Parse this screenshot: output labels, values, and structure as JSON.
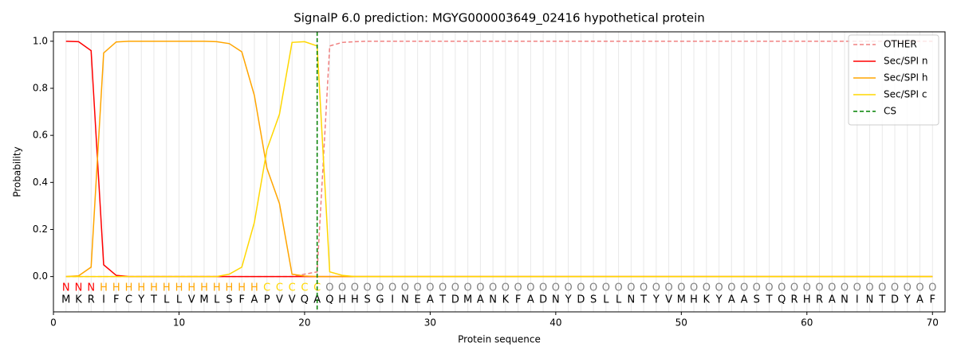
{
  "chart_data": {
    "type": "line",
    "title": "SignalP 6.0 prediction: MGYG000003649_02416 hypothetical protein",
    "xlabel": "Protein sequence",
    "ylabel": "Probability",
    "xlim": [
      0,
      71
    ],
    "ylim": [
      -0.15,
      1.04
    ],
    "xticks": [
      0,
      10,
      20,
      30,
      40,
      50,
      60,
      70
    ],
    "yticks": [
      {
        "value": 0,
        "label": "0.0"
      },
      {
        "value": 0.2,
        "label": "0.2"
      },
      {
        "value": 0.4,
        "label": "0.4"
      },
      {
        "value": 0.6,
        "label": "0.6"
      },
      {
        "value": 0.8,
        "label": "0.8"
      },
      {
        "value": 1,
        "label": "1.0"
      }
    ],
    "grid": "x",
    "legend": "upper right",
    "x": [
      1,
      2,
      3,
      4,
      5,
      6,
      7,
      8,
      9,
      10,
      11,
      12,
      13,
      14,
      15,
      16,
      17,
      18,
      19,
      20,
      21,
      22,
      23,
      24,
      25,
      26,
      27,
      28,
      29,
      30,
      31,
      32,
      33,
      34,
      35,
      36,
      37,
      38,
      39,
      40,
      41,
      42,
      43,
      44,
      45,
      46,
      47,
      48,
      49,
      50,
      51,
      52,
      53,
      54,
      55,
      56,
      57,
      58,
      59,
      60,
      61,
      62,
      63,
      64,
      65,
      66,
      67,
      68,
      69,
      70
    ],
    "sequence": [
      "M",
      "K",
      "R",
      "I",
      "F",
      "C",
      "Y",
      "T",
      "L",
      "L",
      "V",
      "M",
      "L",
      "S",
      "F",
      "A",
      "P",
      "V",
      "V",
      "Q",
      "A",
      "Q",
      "H",
      "H",
      "S",
      "G",
      "I",
      "N",
      "E",
      "A",
      "T",
      "D",
      "M",
      "A",
      "N",
      "K",
      "F",
      "A",
      "D",
      "N",
      "Y",
      "D",
      "S",
      "L",
      "L",
      "N",
      "T",
      "Y",
      "V",
      "M",
      "H",
      "K",
      "Y",
      "A",
      "A",
      "S",
      "T",
      "Q",
      "R",
      "H",
      "R",
      "A",
      "N",
      "I",
      "N",
      "T",
      "D",
      "Y",
      "A",
      "F"
    ],
    "region_labels": [
      "N",
      "N",
      "N",
      "H",
      "H",
      "H",
      "H",
      "H",
      "H",
      "H",
      "H",
      "H",
      "H",
      "H",
      "H",
      "H",
      "C",
      "C",
      "C",
      "C",
      "C",
      "O",
      "O",
      "O",
      "O",
      "O",
      "O",
      "O",
      "O",
      "O",
      "O",
      "O",
      "O",
      "O",
      "O",
      "O",
      "O",
      "O",
      "O",
      "O",
      "O",
      "O",
      "O",
      "O",
      "O",
      "O",
      "O",
      "O",
      "O",
      "O",
      "O",
      "O",
      "O",
      "O",
      "O",
      "O",
      "O",
      "O",
      "O",
      "O",
      "O",
      "O",
      "O",
      "O",
      "O",
      "O",
      "O",
      "O",
      "O",
      "O"
    ],
    "region_colors": {
      "N": "#ff0000",
      "H": "#ffa500",
      "C": "#ffd700",
      "O": "#808080"
    },
    "series": [
      {
        "name": "OTHER",
        "color": "#f08080",
        "dashed": true,
        "values": [
          0,
          0,
          0,
          0,
          0,
          0,
          0,
          0,
          0,
          0,
          0,
          0,
          0,
          0,
          0,
          0,
          0,
          0,
          0,
          0.01,
          0.02,
          0.98,
          0.995,
          0.998,
          1,
          1,
          1,
          1,
          1,
          1,
          1,
          1,
          1,
          1,
          1,
          1,
          1,
          1,
          1,
          1,
          1,
          1,
          1,
          1,
          1,
          1,
          1,
          1,
          1,
          1,
          1,
          1,
          1,
          1,
          1,
          1,
          1,
          1,
          1,
          1,
          1,
          1,
          1,
          1,
          1,
          1,
          1,
          1,
          1,
          1
        ]
      },
      {
        "name": "Sec/SPI n",
        "color": "#ff0000",
        "dashed": false,
        "values": [
          1.0,
          0.998,
          0.96,
          0.05,
          0.005,
          0,
          0,
          0,
          0,
          0,
          0,
          0,
          0,
          0,
          0,
          0,
          0,
          0,
          0,
          0,
          0,
          0,
          0,
          0,
          0,
          0,
          0,
          0,
          0,
          0,
          0,
          0,
          0,
          0,
          0,
          0,
          0,
          0,
          0,
          0,
          0,
          0,
          0,
          0,
          0,
          0,
          0,
          0,
          0,
          0,
          0,
          0,
          0,
          0,
          0,
          0,
          0,
          0,
          0,
          0,
          0,
          0,
          0,
          0,
          0,
          0,
          0,
          0,
          0,
          0
        ]
      },
      {
        "name": "Sec/SPI h",
        "color": "#ffa500",
        "dashed": false,
        "values": [
          0,
          0.003,
          0.04,
          0.95,
          0.997,
          1,
          1,
          1,
          1,
          1,
          1,
          1,
          0.998,
          0.99,
          0.955,
          0.77,
          0.46,
          0.31,
          0.01,
          0.002,
          0,
          0,
          0,
          0,
          0,
          0,
          0,
          0,
          0,
          0,
          0,
          0,
          0,
          0,
          0,
          0,
          0,
          0,
          0,
          0,
          0,
          0,
          0,
          0,
          0,
          0,
          0,
          0,
          0,
          0,
          0,
          0,
          0,
          0,
          0,
          0,
          0,
          0,
          0,
          0,
          0,
          0,
          0,
          0,
          0,
          0,
          0,
          0,
          0,
          0
        ]
      },
      {
        "name": "Sec/SPI c",
        "color": "#ffd700",
        "dashed": false,
        "values": [
          0,
          0,
          0,
          0,
          0,
          0,
          0,
          0,
          0,
          0,
          0,
          0,
          0,
          0.01,
          0.04,
          0.23,
          0.54,
          0.69,
          0.995,
          0.998,
          0.98,
          0.02,
          0.005,
          0,
          0,
          0,
          0,
          0,
          0,
          0,
          0,
          0,
          0,
          0,
          0,
          0,
          0,
          0,
          0,
          0,
          0,
          0,
          0,
          0,
          0,
          0,
          0,
          0,
          0,
          0,
          0,
          0,
          0,
          0,
          0,
          0,
          0,
          0,
          0,
          0,
          0,
          0,
          0,
          0,
          0,
          0,
          0,
          0,
          0,
          0
        ]
      }
    ],
    "cleavage_site": {
      "name": "CS",
      "x": 21,
      "color": "#008000"
    }
  }
}
